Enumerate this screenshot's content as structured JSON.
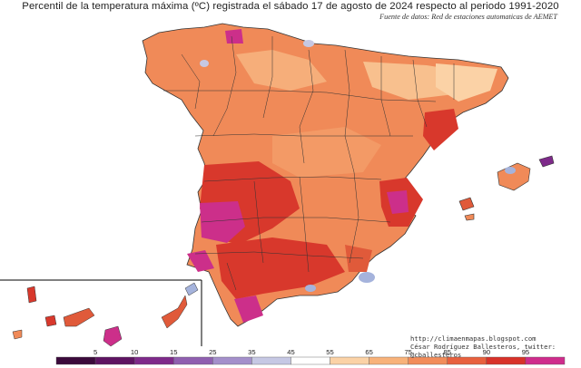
{
  "title": "Percentil de la temperatura máxima (ºC) registrada el sábado 17 de agosto de 2024 respecto al periodo 1991-2020",
  "source": "Fuente de datos: Red de estaciones automaticas de AEMET",
  "credits": {
    "url": "http://climaenmapas.blogspot.com",
    "author": "César Rodríguez Ballesteros, twitter: @cballesteros"
  },
  "legend": {
    "ticks": [
      "5",
      "10",
      "15",
      "25",
      "35",
      "45",
      "55",
      "65",
      "75",
      "85",
      "90",
      "95"
    ],
    "colors": [
      "#3b0a3b",
      "#5e1462",
      "#7e2a8a",
      "#8f5fb0",
      "#a48fcb",
      "#c6c8e4",
      "#ffffff",
      "#fbd2a6",
      "#f8b27a",
      "#f28c5a",
      "#e8603e",
      "#d8322a",
      "#cf2c8c"
    ]
  },
  "map": {
    "background": "#ffffff",
    "dominant_color": "#f08a58",
    "hot_color": "#d8382c",
    "extreme_color": "#cc2f8a",
    "cool_color": "#a5b3dc"
  }
}
